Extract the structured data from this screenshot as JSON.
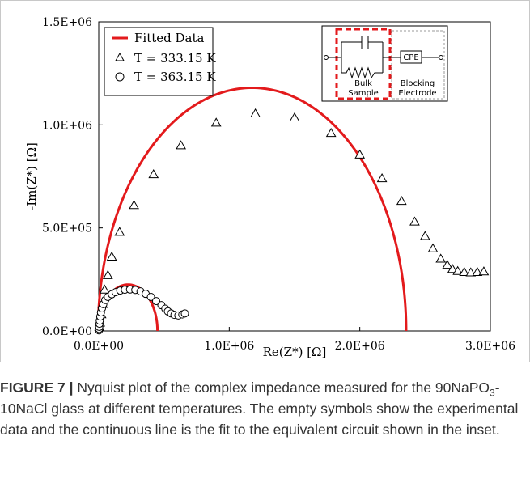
{
  "chart_data": {
    "type": "scatter",
    "xlabel": "Re(Z*)  [Ω]",
    "ylabel": "-Im(Z*)  [Ω]",
    "xlim": [
      0,
      3000000
    ],
    "ylim": [
      0,
      1500000
    ],
    "x_ticks": [
      "0.0E+00",
      "1.0E+06",
      "2.0E+06",
      "3.0E+06"
    ],
    "y_ticks": [
      "0.0E+00",
      "5.0E+05",
      "1.0E+06",
      "1.5E+06"
    ],
    "grid": false,
    "legend_position": "top-left",
    "series": [
      {
        "name": "Fitted Data",
        "kind": "line",
        "color": "#e31a1c",
        "arcs": [
          {
            "center": 1175000,
            "radius": 1180000,
            "y_offset": 0
          },
          {
            "center": 225000,
            "radius": 225000,
            "y_offset": 0
          }
        ]
      },
      {
        "name": "T = 333.15 K",
        "kind": "marker",
        "marker": "triangle",
        "points": [
          [
            5000,
            20000
          ],
          [
            10000,
            40000
          ],
          [
            20000,
            80000
          ],
          [
            30000,
            130000
          ],
          [
            45000,
            200000
          ],
          [
            70000,
            270000
          ],
          [
            100000,
            360000
          ],
          [
            160000,
            480000
          ],
          [
            270000,
            610000
          ],
          [
            420000,
            760000
          ],
          [
            630000,
            900000
          ],
          [
            900000,
            1010000
          ],
          [
            1200000,
            1055000
          ],
          [
            1500000,
            1035000
          ],
          [
            1780000,
            960000
          ],
          [
            2000000,
            855000
          ],
          [
            2170000,
            740000
          ],
          [
            2320000,
            630000
          ],
          [
            2420000,
            530000
          ],
          [
            2500000,
            460000
          ],
          [
            2560000,
            400000
          ],
          [
            2620000,
            350000
          ],
          [
            2670000,
            320000
          ],
          [
            2710000,
            300000
          ],
          [
            2750000,
            290000
          ],
          [
            2800000,
            285000
          ],
          [
            2850000,
            283000
          ],
          [
            2900000,
            285000
          ],
          [
            2950000,
            288000
          ]
        ]
      },
      {
        "name": "T = 363.15 K",
        "kind": "marker",
        "marker": "circle",
        "points": [
          [
            2000,
            3000
          ],
          [
            3000,
            10000
          ],
          [
            4000,
            20000
          ],
          [
            6000,
            35000
          ],
          [
            8000,
            50000
          ],
          [
            12000,
            70000
          ],
          [
            17000,
            90000
          ],
          [
            25000,
            110000
          ],
          [
            35000,
            130000
          ],
          [
            50000,
            150000
          ],
          [
            70000,
            165000
          ],
          [
            100000,
            178000
          ],
          [
            130000,
            188000
          ],
          [
            165000,
            196000
          ],
          [
            200000,
            200000
          ],
          [
            240000,
            201000
          ],
          [
            280000,
            199000
          ],
          [
            320000,
            192000
          ],
          [
            360000,
            180000
          ],
          [
            400000,
            165000
          ],
          [
            440000,
            145000
          ],
          [
            480000,
            125000
          ],
          [
            510000,
            108000
          ],
          [
            530000,
            95000
          ],
          [
            555000,
            85000
          ],
          [
            580000,
            78000
          ],
          [
            610000,
            75000
          ],
          [
            640000,
            80000
          ],
          [
            660000,
            85000
          ]
        ]
      }
    ],
    "inset": {
      "labels": {
        "bulk": [
          "Bulk",
          "Sample"
        ],
        "blocking": [
          "Blocking",
          "Electrode"
        ],
        "cpe": "CPE"
      }
    }
  },
  "caption": {
    "label": "FIGURE 7 |",
    "text_before_sub": " Nyquist plot of the complex impedance measured for the 90NaPO",
    "sub": "3",
    "text_after_sub": "-10NaCl glass at different temperatures. The empty symbols show the experimental data and the continuous line is the fit to the equivalent circuit shown in the inset."
  }
}
